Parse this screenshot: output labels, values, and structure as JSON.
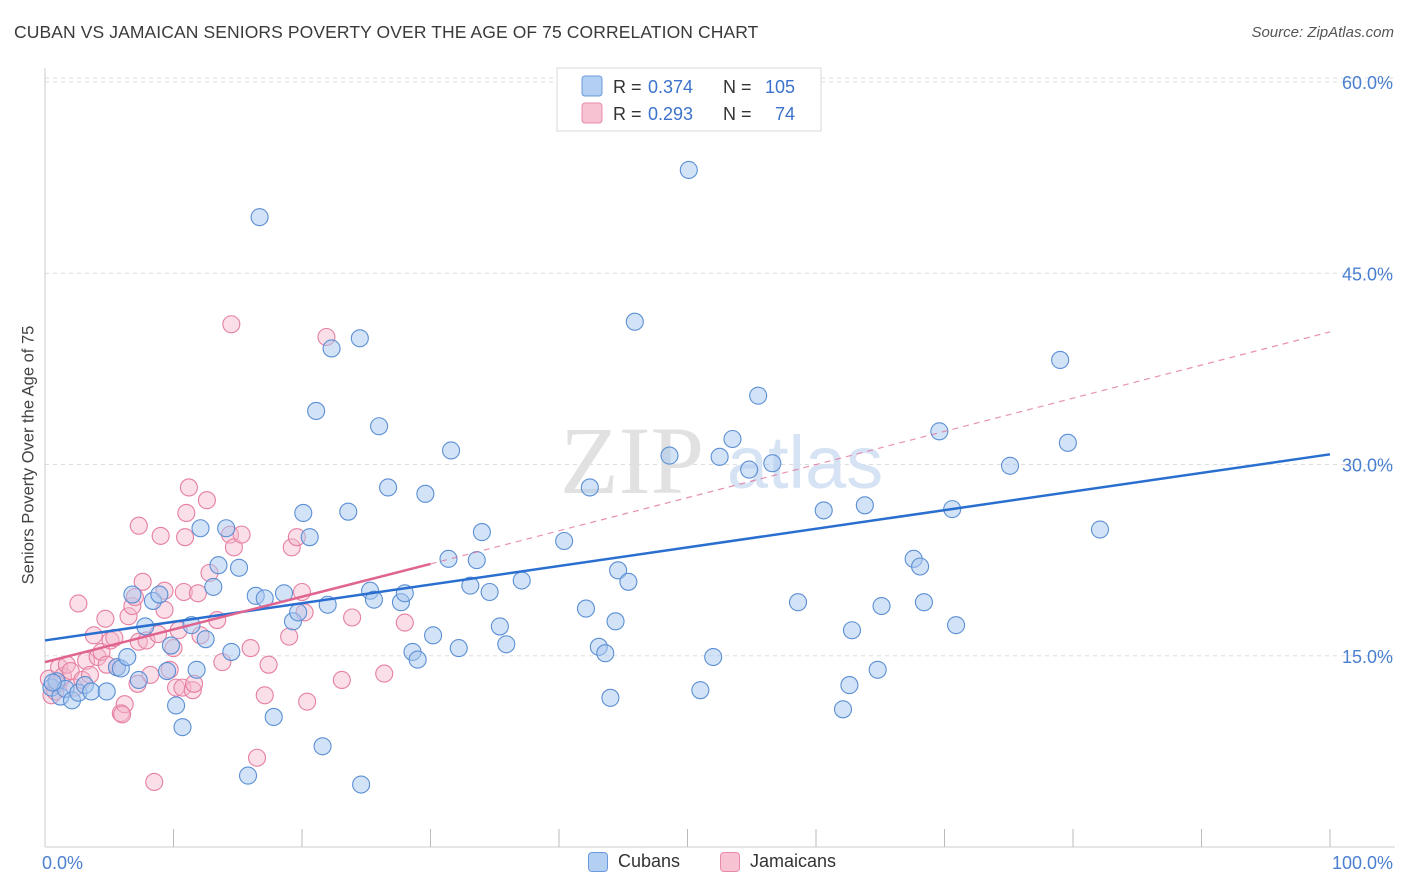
{
  "title": "CUBAN VS JAMAICAN SENIORS POVERTY OVER THE AGE OF 75 CORRELATION CHART",
  "source": "Source: ZipAtlas.com",
  "watermark": {
    "zip": "ZIP",
    "atlas": "atlas"
  },
  "colors": {
    "blue_fill": "#a8c8f0",
    "blue_stroke": "#5b8fd4",
    "blue_line": "#2a6fcf",
    "pink_fill": "#f5b8cb",
    "pink_stroke": "#e67fa0",
    "pink_line": "#e06490",
    "tick_label": "#4a7fd0",
    "grid": "#dddddd"
  },
  "legend_top": {
    "rows": [
      {
        "series": "Cubans",
        "r_label": "R =",
        "r_value": "0.374",
        "n_label": "N =",
        "n_value": "105"
      },
      {
        "series": "Jamaicans",
        "r_label": "R =",
        "r_value": "0.293",
        "n_label": "N =",
        "n_value": "74"
      }
    ]
  },
  "chart_data": {
    "type": "scatter",
    "title": "CUBAN VS JAMAICAN SENIORS POVERTY OVER THE AGE OF 75 CORRELATION CHART",
    "xlabel": "",
    "ylabel": "Seniors Poverty Over the Age of 75",
    "xlim": [
      0,
      100
    ],
    "ylim": [
      0,
      63
    ],
    "x_tick_labels": {
      "left": "0.0%",
      "right": "100.0%"
    },
    "y_ticks": [
      15,
      30,
      45,
      60
    ],
    "y_tick_labels": [
      "15.0%",
      "30.0%",
      "45.0%",
      "60.0%"
    ],
    "grid": true,
    "legend": [
      "Cubans",
      "Jamaicans"
    ],
    "series": [
      {
        "name": "Cubans",
        "color": "#a8c8f0",
        "trend": {
          "x0": 0,
          "y0": 16.2,
          "x1": 100,
          "y1": 30.8
        },
        "points": [
          [
            0.5,
            12.5
          ],
          [
            0.9,
            13
          ],
          [
            1.2,
            11.8
          ],
          [
            1.6,
            12.4
          ],
          [
            2.1,
            11.5
          ],
          [
            2.6,
            12.1
          ],
          [
            3.1,
            12.7
          ],
          [
            3.6,
            12.2
          ],
          [
            4.8,
            12.2
          ],
          [
            5.6,
            14.1
          ],
          [
            5.9,
            14
          ],
          [
            6.4,
            14.9
          ],
          [
            6.8,
            19.8
          ],
          [
            7.3,
            13.1
          ],
          [
            7.8,
            17.3
          ],
          [
            8.4,
            19.3
          ],
          [
            8.9,
            19.8
          ],
          [
            9.5,
            13.8
          ],
          [
            9.8,
            15.8
          ],
          [
            10.2,
            11.1
          ],
          [
            10.7,
            9.4
          ],
          [
            11.4,
            17.4
          ],
          [
            11.8,
            13.9
          ],
          [
            12.1,
            25
          ],
          [
            12.5,
            16.3
          ],
          [
            13.1,
            20.4
          ],
          [
            13.5,
            22.1
          ],
          [
            14.1,
            25
          ],
          [
            14.5,
            15.3
          ],
          [
            15.1,
            21.9
          ],
          [
            15.8,
            5.6
          ],
          [
            16.4,
            19.7
          ],
          [
            16.7,
            49.4
          ],
          [
            17.1,
            19.5
          ],
          [
            17.8,
            10.2
          ],
          [
            18.6,
            19.9
          ],
          [
            19.3,
            17.7
          ],
          [
            19.7,
            18.4
          ],
          [
            20.1,
            26.2
          ],
          [
            20.6,
            24.3
          ],
          [
            21.1,
            34.2
          ],
          [
            21.6,
            7.9
          ],
          [
            22,
            19
          ],
          [
            22.3,
            39.1
          ],
          [
            23.6,
            26.3
          ],
          [
            24.5,
            39.9
          ],
          [
            24.6,
            4.9
          ],
          [
            25.3,
            20.1
          ],
          [
            25.6,
            19.4
          ],
          [
            26,
            33
          ],
          [
            26.7,
            28.2
          ],
          [
            27.7,
            19.2
          ],
          [
            28,
            19.9
          ],
          [
            28.6,
            15.3
          ],
          [
            29,
            14.7
          ],
          [
            29.6,
            27.7
          ],
          [
            30.2,
            16.6
          ],
          [
            31.4,
            22.6
          ],
          [
            31.6,
            31.1
          ],
          [
            32.2,
            15.6
          ],
          [
            33.1,
            20.5
          ],
          [
            33.6,
            22.5
          ],
          [
            34,
            24.7
          ],
          [
            34.6,
            20
          ],
          [
            35.4,
            17.3
          ],
          [
            35.9,
            15.9
          ],
          [
            37.1,
            20.9
          ],
          [
            40.4,
            24
          ],
          [
            42.1,
            18.7
          ],
          [
            42.4,
            28.2
          ],
          [
            43.1,
            15.7
          ],
          [
            43.6,
            15.2
          ],
          [
            44,
            11.7
          ],
          [
            44.4,
            17.7
          ],
          [
            44.6,
            21.7
          ],
          [
            45.4,
            20.8
          ],
          [
            45.9,
            41.2
          ],
          [
            48.6,
            30.7
          ],
          [
            50.1,
            53.1
          ],
          [
            51,
            12.3
          ],
          [
            52,
            14.9
          ],
          [
            52.5,
            30.6
          ],
          [
            53.5,
            32
          ],
          [
            54.8,
            29.6
          ],
          [
            55.5,
            35.4
          ],
          [
            56.6,
            30.1
          ],
          [
            58.6,
            19.2
          ],
          [
            60.6,
            26.4
          ],
          [
            62.1,
            10.8
          ],
          [
            62.6,
            12.7
          ],
          [
            62.8,
            17
          ],
          [
            63.8,
            26.8
          ],
          [
            64.8,
            13.9
          ],
          [
            65.1,
            18.9
          ],
          [
            67.6,
            22.6
          ],
          [
            68.1,
            22
          ],
          [
            68.4,
            19.2
          ],
          [
            69.6,
            32.6
          ],
          [
            70.6,
            26.5
          ],
          [
            70.9,
            17.4
          ],
          [
            75.1,
            29.9
          ],
          [
            79,
            38.2
          ],
          [
            79.6,
            31.7
          ],
          [
            82.1,
            24.9
          ],
          [
            0.6,
            12.9
          ]
        ]
      },
      {
        "name": "Jamaicans",
        "color": "#f5b8cb",
        "trend": {
          "x0": 0,
          "y0": 14.5,
          "x1": 30,
          "y1": 22.2,
          "dash_to_x": 100,
          "dash_to_y": 40.4
        },
        "points": [
          [
            0.3,
            13.2
          ],
          [
            0.5,
            11.9
          ],
          [
            0.8,
            12.2
          ],
          [
            1.1,
            14.1
          ],
          [
            1.4,
            13.4
          ],
          [
            1.7,
            14.3
          ],
          [
            2,
            13.8
          ],
          [
            2.3,
            12.5
          ],
          [
            2.6,
            19.1
          ],
          [
            2.9,
            13.1
          ],
          [
            3.2,
            14.6
          ],
          [
            3.5,
            13.5
          ],
          [
            3.8,
            16.6
          ],
          [
            4.1,
            14.9
          ],
          [
            4.4,
            15.3
          ],
          [
            4.7,
            17.9
          ],
          [
            4.8,
            14.3
          ],
          [
            5.1,
            16.2
          ],
          [
            5.4,
            16.4
          ],
          [
            5.6,
            14.1
          ],
          [
            5.9,
            10.5
          ],
          [
            6.2,
            11.2
          ],
          [
            6.5,
            18.1
          ],
          [
            6.8,
            18.9
          ],
          [
            7,
            19.6
          ],
          [
            7.3,
            16.1
          ],
          [
            7.3,
            25.2
          ],
          [
            7.6,
            20.8
          ],
          [
            7.9,
            16.2
          ],
          [
            8.2,
            13.5
          ],
          [
            8.5,
            5.1
          ],
          [
            8.8,
            16.7
          ],
          [
            9,
            24.4
          ],
          [
            9.3,
            18.6
          ],
          [
            9.3,
            20.1
          ],
          [
            9.7,
            13.9
          ],
          [
            10,
            15.6
          ],
          [
            10.2,
            12.5
          ],
          [
            10.4,
            17
          ],
          [
            10.7,
            12.5
          ],
          [
            10.8,
            20
          ],
          [
            10.9,
            24.3
          ],
          [
            11,
            26.2
          ],
          [
            11.2,
            28.2
          ],
          [
            11.5,
            12.3
          ],
          [
            11.6,
            12.8
          ],
          [
            11.9,
            19.9
          ],
          [
            12.1,
            16.6
          ],
          [
            12.6,
            27.2
          ],
          [
            12.8,
            21.5
          ],
          [
            13.4,
            17.8
          ],
          [
            13.8,
            14.5
          ],
          [
            14.4,
            24.5
          ],
          [
            14.5,
            41
          ],
          [
            14.7,
            23.5
          ],
          [
            15.3,
            24.5
          ],
          [
            16,
            15.6
          ],
          [
            16.5,
            7
          ],
          [
            17.1,
            11.9
          ],
          [
            17.4,
            14.3
          ],
          [
            19,
            16.5
          ],
          [
            19.2,
            23.5
          ],
          [
            19.6,
            24.3
          ],
          [
            20,
            20
          ],
          [
            20.2,
            18.4
          ],
          [
            20.4,
            11.4
          ],
          [
            21.9,
            40
          ],
          [
            23.1,
            13.1
          ],
          [
            23.9,
            18
          ],
          [
            26.4,
            13.6
          ],
          [
            28,
            17.6
          ],
          [
            0.9,
            12.8
          ],
          [
            6,
            10.4
          ],
          [
            7.2,
            12.8
          ]
        ]
      }
    ]
  }
}
